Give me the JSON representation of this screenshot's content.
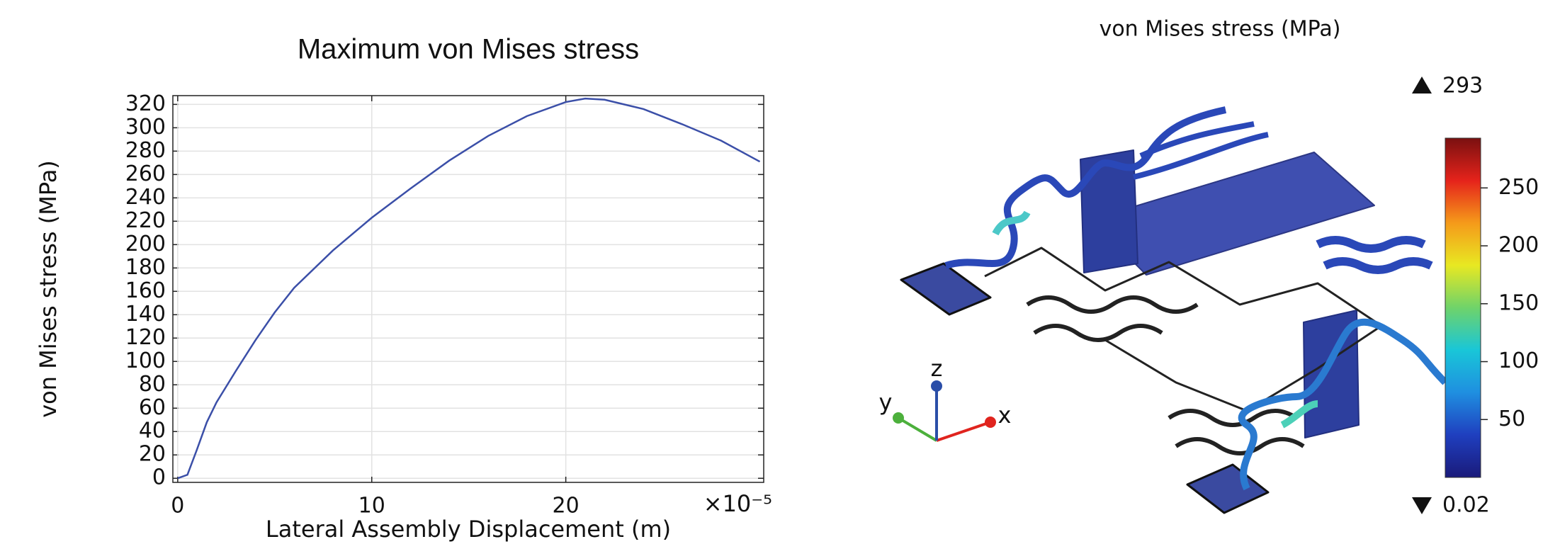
{
  "chart_data": [
    {
      "type": "line",
      "title": "Maximum von Mises stress",
      "xlabel": "Lateral Assembly Displacement (m)",
      "ylabel": "von Mises stress (MPa)",
      "x_offset_text": "×10⁻⁵",
      "x": [
        0,
        0.5,
        1,
        1.5,
        2,
        3,
        4,
        5,
        6,
        8,
        10,
        12,
        14,
        16,
        18,
        20,
        21,
        22,
        24,
        26,
        28,
        30
      ],
      "series": [
        {
          "name": "Maximum von Mises stress",
          "color": "#3b4fa8",
          "values": [
            0,
            3,
            25,
            48,
            65,
            92,
            118,
            142,
            163,
            195,
            223,
            248,
            272,
            293,
            310,
            322,
            325,
            324,
            316,
            303,
            289,
            271
          ]
        }
      ],
      "xlim": [
        -0.25,
        30.2
      ],
      "xticks": [
        0,
        10,
        20
      ],
      "ylim": [
        -3.5,
        327.5
      ],
      "yticks": [
        0,
        20,
        40,
        60,
        80,
        100,
        120,
        140,
        160,
        180,
        200,
        220,
        240,
        260,
        280,
        300,
        320
      ],
      "grid": true
    },
    {
      "type": "colorbar",
      "title": "von Mises stress (MPa)",
      "clim": [
        0.02,
        293
      ],
      "ticks": [
        50,
        100,
        150,
        200,
        250
      ],
      "colormap": [
        "#1a1a7a",
        "#1f3fbf",
        "#1f8fe0",
        "#19c6d8",
        "#6fd36a",
        "#e8e822",
        "#f59a1a",
        "#e5231b",
        "#7a1010"
      ],
      "axis_labels": [
        "x",
        "y",
        "z"
      ],
      "axis_colors": [
        "#e0241e",
        "#4cb03c",
        "#2a4ea8"
      ]
    }
  ]
}
